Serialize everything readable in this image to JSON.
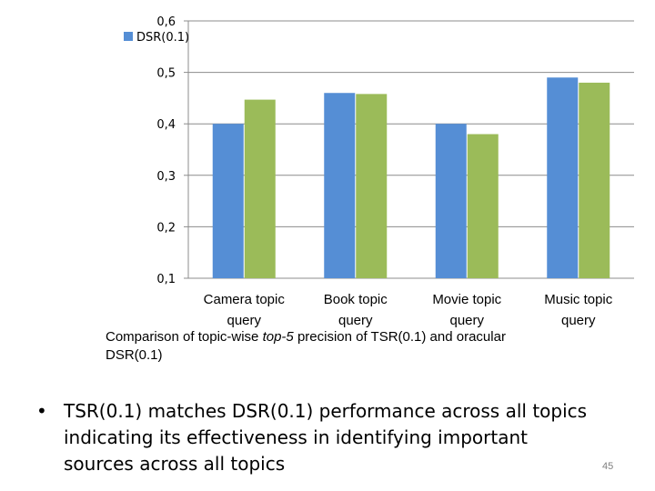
{
  "chart_data": {
    "type": "bar",
    "categories": [
      "Camera topic query",
      "Book topic query",
      "Movie topic query",
      "Music topic query"
    ],
    "category_lines": [
      [
        "Camera topic",
        "query"
      ],
      [
        "Book topic",
        "query"
      ],
      [
        "Movie topic",
        "query"
      ],
      [
        "Music topic",
        "query"
      ]
    ],
    "series": [
      {
        "values": [
          0.4,
          0.46,
          0.4,
          0.49
        ],
        "color": "#558ed5"
      },
      {
        "values": [
          0.447,
          0.458,
          0.38,
          0.48
        ],
        "color": "#9bbb59"
      }
    ],
    "ylim": [
      0.1,
      0.6
    ],
    "yticks": [
      0.1,
      0.2,
      0.3,
      0.4,
      0.5,
      0.6
    ],
    "ytick_labels": [
      "0,1",
      "0,2",
      "0,3",
      "0,4",
      "0,5",
      "0,6"
    ],
    "grid": true,
    "legend": {
      "label": "DSR(0.1)",
      "color": "#558ed5",
      "placement": "top-left"
    },
    "caption": {
      "before": "Comparison of topic-wise ",
      "italic": "top-5",
      "after": " precision of TSR(0.1) and oracular DSR(0.1)"
    }
  },
  "slide": {
    "bullet_char": "•",
    "bullet_text": "TSR(0.1) matches DSR(0.1) performance across all topics indicating its effectiveness in identifying important sources across all topics",
    "page_number": "45"
  }
}
